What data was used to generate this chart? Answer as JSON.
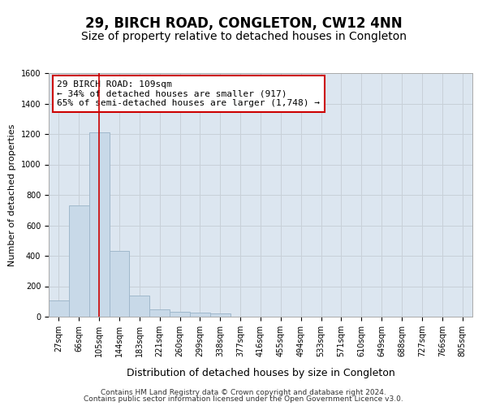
{
  "title": "29, BIRCH ROAD, CONGLETON, CW12 4NN",
  "subtitle": "Size of property relative to detached houses in Congleton",
  "xlabel": "Distribution of detached houses by size in Congleton",
  "ylabel": "Number of detached properties",
  "footer1": "Contains HM Land Registry data © Crown copyright and database right 2024.",
  "footer2": "Contains public sector information licensed under the Open Government Licence v3.0.",
  "bin_labels": [
    "27sqm",
    "66sqm",
    "105sqm",
    "144sqm",
    "183sqm",
    "221sqm",
    "260sqm",
    "299sqm",
    "338sqm",
    "377sqm",
    "416sqm",
    "455sqm",
    "494sqm",
    "533sqm",
    "571sqm",
    "610sqm",
    "649sqm",
    "688sqm",
    "727sqm",
    "766sqm",
    "805sqm"
  ],
  "bar_values": [
    105,
    730,
    1210,
    430,
    140,
    50,
    30,
    25,
    20,
    0,
    0,
    0,
    0,
    0,
    0,
    0,
    0,
    0,
    0,
    0,
    0
  ],
  "bar_color": "#c8d9e8",
  "bar_edge_color": "#a0b8cc",
  "grid_color": "#c8d0d8",
  "background_color": "#dce6f0",
  "property_line_x": 2,
  "property_line_color": "#cc0000",
  "annotation_text": "29 BIRCH ROAD: 109sqm\n← 34% of detached houses are smaller (917)\n65% of semi-detached houses are larger (1,748) →",
  "annotation_box_color": "#cc0000",
  "ylim": [
    0,
    1600
  ],
  "yticks": [
    0,
    200,
    400,
    600,
    800,
    1000,
    1200,
    1400,
    1600
  ],
  "title_fontsize": 12,
  "subtitle_fontsize": 10,
  "xlabel_fontsize": 9,
  "ylabel_fontsize": 8,
  "tick_fontsize": 7,
  "annotation_fontsize": 8
}
